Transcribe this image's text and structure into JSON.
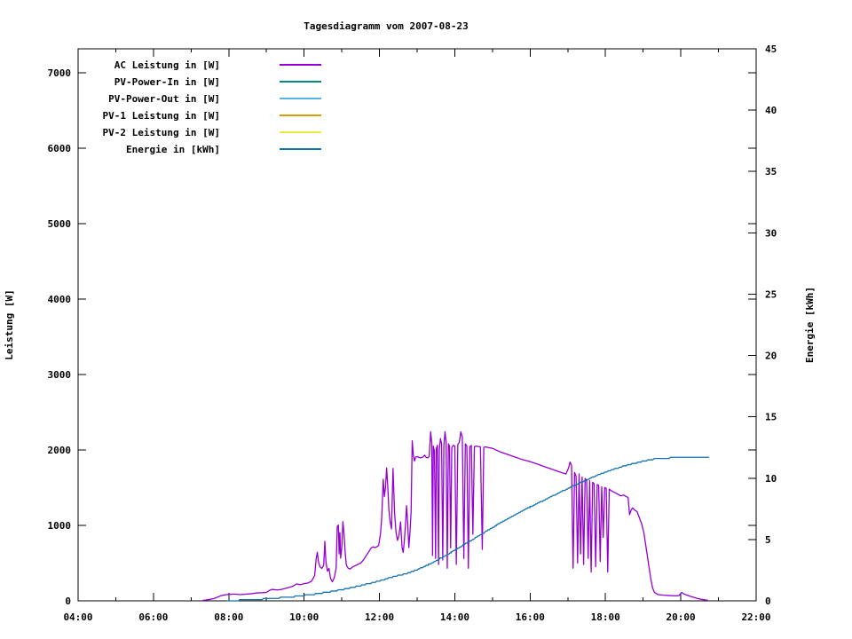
{
  "title": "Tagesdiagramm vom 2007-08-23",
  "chart_data": {
    "type": "line",
    "title": "Tagesdiagramm vom 2007-08-23",
    "grid": false,
    "legend_position": "top-left-inside",
    "x_axis": {
      "label": "",
      "range_hours": [
        4,
        22
      ],
      "major_tick_labels": [
        "04:00",
        "06:00",
        "08:00",
        "10:00",
        "12:00",
        "14:00",
        "16:00",
        "18:00",
        "20:00",
        "22:00"
      ],
      "major_tick_hours": [
        4,
        6,
        8,
        10,
        12,
        14,
        16,
        18,
        20,
        22
      ],
      "minor_tick_hours": [
        5,
        7,
        9,
        11,
        13,
        15,
        17,
        19,
        21
      ]
    },
    "y_left": {
      "label": "Leistung [W]",
      "range": [
        0,
        7320
      ],
      "tick_values": [
        0,
        1000,
        2000,
        3000,
        4000,
        5000,
        6000,
        7000
      ],
      "tick_labels": [
        "0",
        "1000",
        "2000",
        "3000",
        "4000",
        "5000",
        "6000",
        "7000"
      ]
    },
    "y_right": {
      "label": "Energie [kWh]",
      "range": [
        0,
        45
      ],
      "tick_values": [
        0,
        5,
        10,
        15,
        20,
        25,
        30,
        35,
        40,
        45
      ],
      "tick_labels": [
        "0",
        "5",
        "10",
        "15",
        "20",
        "25",
        "30",
        "35",
        "40",
        "45"
      ]
    },
    "legend": [
      {
        "label": "AC Leistung in [W]",
        "color": "#9400d3",
        "has_data": true
      },
      {
        "label": "PV-Power-In in [W]",
        "color": "#008c7d",
        "has_data": false
      },
      {
        "label": "PV-Power-Out in [W]",
        "color": "#55b4e6",
        "has_data": false
      },
      {
        "label": "PV-1 Leistung in [W]",
        "color": "#d7a000",
        "has_data": false
      },
      {
        "label": "PV-2 Leistung in [W]",
        "color": "#f0e641",
        "has_data": false
      },
      {
        "label": "Energie in [kWh]",
        "color": "#1272ad",
        "has_data": true
      }
    ],
    "series": [
      {
        "name": "AC Leistung in [W]",
        "axis": "left",
        "color": "#9400d3",
        "units": "W",
        "points": [
          [
            7.3,
            5
          ],
          [
            7.4,
            12
          ],
          [
            7.5,
            20
          ],
          [
            7.6,
            30
          ],
          [
            7.7,
            48
          ],
          [
            7.8,
            70
          ],
          [
            7.9,
            80
          ],
          [
            8.0,
            85
          ],
          [
            8.15,
            90
          ],
          [
            8.3,
            82
          ],
          [
            8.45,
            88
          ],
          [
            8.6,
            95
          ],
          [
            8.75,
            105
          ],
          [
            8.9,
            108
          ],
          [
            9.0,
            112
          ],
          [
            9.08,
            138
          ],
          [
            9.15,
            152
          ],
          [
            9.22,
            148
          ],
          [
            9.3,
            144
          ],
          [
            9.4,
            152
          ],
          [
            9.5,
            165
          ],
          [
            9.6,
            178
          ],
          [
            9.7,
            192
          ],
          [
            9.8,
            225
          ],
          [
            9.9,
            214
          ],
          [
            10.0,
            228
          ],
          [
            10.1,
            236
          ],
          [
            10.2,
            262
          ],
          [
            10.28,
            335
          ],
          [
            10.32,
            560
          ],
          [
            10.35,
            645
          ],
          [
            10.38,
            520
          ],
          [
            10.42,
            452
          ],
          [
            10.47,
            430
          ],
          [
            10.52,
            472
          ],
          [
            10.55,
            790
          ],
          [
            10.58,
            510
          ],
          [
            10.62,
            392
          ],
          [
            10.66,
            432
          ],
          [
            10.7,
            302
          ],
          [
            10.75,
            252
          ],
          [
            10.8,
            306
          ],
          [
            10.85,
            432
          ],
          [
            10.88,
            985
          ],
          [
            10.91,
            1005
          ],
          [
            10.93,
            622
          ],
          [
            10.95,
            905
          ],
          [
            10.97,
            565
          ],
          [
            11.0,
            702
          ],
          [
            11.03,
            1050
          ],
          [
            11.06,
            882
          ],
          [
            11.09,
            642
          ],
          [
            11.12,
            476
          ],
          [
            11.17,
            432
          ],
          [
            11.22,
            422
          ],
          [
            11.28,
            446
          ],
          [
            11.35,
            465
          ],
          [
            11.42,
            482
          ],
          [
            11.5,
            500
          ],
          [
            11.58,
            545
          ],
          [
            11.65,
            602
          ],
          [
            11.72,
            652
          ],
          [
            11.78,
            702
          ],
          [
            11.83,
            716
          ],
          [
            11.88,
            706
          ],
          [
            11.93,
            716
          ],
          [
            11.98,
            736
          ],
          [
            12.03,
            900
          ],
          [
            12.06,
            1102
          ],
          [
            12.1,
            1612
          ],
          [
            12.13,
            1382
          ],
          [
            12.16,
            1502
          ],
          [
            12.19,
            1762
          ],
          [
            12.22,
            1522
          ],
          [
            12.25,
            1212
          ],
          [
            12.28,
            1062
          ],
          [
            12.32,
            952
          ],
          [
            12.36,
            1756
          ],
          [
            12.4,
            1182
          ],
          [
            12.44,
            906
          ],
          [
            12.48,
            802
          ],
          [
            12.52,
            872
          ],
          [
            12.56,
            1046
          ],
          [
            12.6,
            706
          ],
          [
            12.63,
            642
          ],
          [
            12.66,
            792
          ],
          [
            12.69,
            1002
          ],
          [
            12.72,
            1262
          ],
          [
            12.75,
            1026
          ],
          [
            12.78,
            706
          ],
          [
            12.81,
            906
          ],
          [
            12.84,
            1182
          ],
          [
            12.87,
            2122
          ],
          [
            12.9,
            1932
          ],
          [
            12.93,
            1852
          ],
          [
            12.96,
            1906
          ],
          [
            13.0,
            1912
          ],
          [
            13.05,
            1902
          ],
          [
            13.1,
            1896
          ],
          [
            13.15,
            1906
          ],
          [
            13.2,
            1932
          ],
          [
            13.24,
            1902
          ],
          [
            13.28,
            1896
          ],
          [
            13.32,
            1912
          ],
          [
            13.36,
            2242
          ],
          [
            13.39,
            2082
          ],
          [
            13.41,
            602
          ],
          [
            13.43,
            2052
          ],
          [
            13.46,
            1982
          ],
          [
            13.49,
            562
          ],
          [
            13.51,
            2022
          ],
          [
            13.54,
            2062
          ],
          [
            13.57,
            482
          ],
          [
            13.59,
            2012
          ],
          [
            13.62,
            2152
          ],
          [
            13.65,
            2082
          ],
          [
            13.68,
            542
          ],
          [
            13.71,
            2062
          ],
          [
            13.74,
            2242
          ],
          [
            13.77,
            2102
          ],
          [
            13.8,
            432
          ],
          [
            13.83,
            2082
          ],
          [
            13.86,
            2052
          ],
          [
            13.89,
            702
          ],
          [
            13.92,
            2032
          ],
          [
            13.96,
            2062
          ],
          [
            14.0,
            2052
          ],
          [
            14.04,
            482
          ],
          [
            14.08,
            2072
          ],
          [
            14.12,
            2102
          ],
          [
            14.16,
            2242
          ],
          [
            14.2,
            2172
          ],
          [
            14.24,
            562
          ],
          [
            14.28,
            2082
          ],
          [
            14.32,
            2052
          ],
          [
            14.36,
            432
          ],
          [
            14.4,
            2042
          ],
          [
            14.44,
            2062
          ],
          [
            14.48,
            882
          ],
          [
            14.52,
            2042
          ],
          [
            14.56,
            2052
          ],
          [
            14.62,
            2046
          ],
          [
            14.68,
            2042
          ],
          [
            14.73,
            682
          ],
          [
            14.77,
            2036
          ],
          [
            14.82,
            2042
          ],
          [
            14.9,
            2032
          ],
          [
            15.0,
            2022
          ],
          [
            15.2,
            1976
          ],
          [
            15.4,
            1942
          ],
          [
            15.6,
            1906
          ],
          [
            15.8,
            1872
          ],
          [
            16.0,
            1846
          ],
          [
            16.2,
            1812
          ],
          [
            16.4,
            1776
          ],
          [
            16.6,
            1742
          ],
          [
            16.8,
            1706
          ],
          [
            16.95,
            1682
          ],
          [
            17.02,
            1762
          ],
          [
            17.06,
            1842
          ],
          [
            17.1,
            1792
          ],
          [
            17.14,
            432
          ],
          [
            17.18,
            1702
          ],
          [
            17.22,
            1652
          ],
          [
            17.26,
            502
          ],
          [
            17.3,
            1682
          ],
          [
            17.34,
            622
          ],
          [
            17.38,
            1642
          ],
          [
            17.42,
            482
          ],
          [
            17.46,
            1622
          ],
          [
            17.5,
            1602
          ],
          [
            17.54,
            562
          ],
          [
            17.58,
            1592
          ],
          [
            17.62,
            382
          ],
          [
            17.66,
            1572
          ],
          [
            17.7,
            1552
          ],
          [
            17.74,
            452
          ],
          [
            17.78,
            1542
          ],
          [
            17.82,
            1532
          ],
          [
            17.86,
            522
          ],
          [
            17.9,
            1512
          ],
          [
            17.94,
            842
          ],
          [
            17.98,
            1502
          ],
          [
            18.02,
            1492
          ],
          [
            18.06,
            382
          ],
          [
            18.1,
            1482
          ],
          [
            18.15,
            1462
          ],
          [
            18.22,
            1442
          ],
          [
            18.3,
            1422
          ],
          [
            18.4,
            1392
          ],
          [
            18.48,
            1402
          ],
          [
            18.55,
            1382
          ],
          [
            18.6,
            1372
          ],
          [
            18.64,
            1142
          ],
          [
            18.68,
            1202
          ],
          [
            18.72,
            1232
          ],
          [
            18.78,
            1202
          ],
          [
            18.84,
            1182
          ],
          [
            18.9,
            1102
          ],
          [
            18.96,
            1022
          ],
          [
            19.02,
            902
          ],
          [
            19.08,
            702
          ],
          [
            19.14,
            502
          ],
          [
            19.2,
            302
          ],
          [
            19.25,
            172
          ],
          [
            19.3,
            112
          ],
          [
            19.4,
            82
          ],
          [
            19.55,
            75
          ],
          [
            19.7,
            70
          ],
          [
            19.85,
            66
          ],
          [
            19.95,
            70
          ],
          [
            20.02,
            112
          ],
          [
            20.08,
            92
          ],
          [
            20.15,
            78
          ],
          [
            20.25,
            60
          ],
          [
            20.35,
            45
          ],
          [
            20.45,
            30
          ],
          [
            20.55,
            20
          ],
          [
            20.65,
            12
          ],
          [
            20.72,
            8
          ]
        ]
      },
      {
        "name": "Energie in [kWh]",
        "axis": "right",
        "color": "#1272ad",
        "units": "kWh",
        "step_quantize_kwh": 0.1,
        "points": [
          [
            7.95,
            0.0
          ],
          [
            8.2,
            0.04
          ],
          [
            8.5,
            0.08
          ],
          [
            8.8,
            0.13
          ],
          [
            9.1,
            0.19
          ],
          [
            9.4,
            0.26
          ],
          [
            9.7,
            0.34
          ],
          [
            10.0,
            0.44
          ],
          [
            10.3,
            0.56
          ],
          [
            10.6,
            0.7
          ],
          [
            10.9,
            0.86
          ],
          [
            11.2,
            1.04
          ],
          [
            11.5,
            1.24
          ],
          [
            11.8,
            1.47
          ],
          [
            12.1,
            1.72
          ],
          [
            12.4,
            2.0
          ],
          [
            12.7,
            2.2
          ],
          [
            13.0,
            2.55
          ],
          [
            13.3,
            2.95
          ],
          [
            13.6,
            3.45
          ],
          [
            13.9,
            3.95
          ],
          [
            14.2,
            4.5
          ],
          [
            14.5,
            5.05
          ],
          [
            14.8,
            5.6
          ],
          [
            15.1,
            6.15
          ],
          [
            15.4,
            6.7
          ],
          [
            15.7,
            7.2
          ],
          [
            16.0,
            7.65
          ],
          [
            16.3,
            8.1
          ],
          [
            16.6,
            8.55
          ],
          [
            16.9,
            9.0
          ],
          [
            17.2,
            9.45
          ],
          [
            17.5,
            9.85
          ],
          [
            17.8,
            10.25
          ],
          [
            18.1,
            10.6
          ],
          [
            18.4,
            10.9
          ],
          [
            18.7,
            11.15
          ],
          [
            19.0,
            11.38
          ],
          [
            19.2,
            11.52
          ],
          [
            19.4,
            11.6
          ],
          [
            19.6,
            11.64
          ],
          [
            19.8,
            11.66
          ],
          [
            20.0,
            11.67
          ],
          [
            20.1,
            11.72
          ],
          [
            20.4,
            11.74
          ],
          [
            20.75,
            11.74
          ]
        ]
      }
    ]
  }
}
